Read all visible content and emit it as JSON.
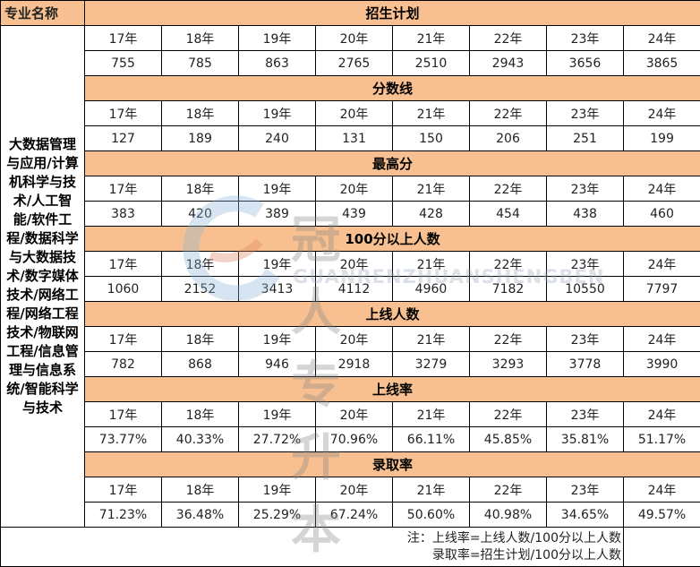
{
  "header": {
    "name_label": "专业名称"
  },
  "major": "大数据管理与应用/计算机科学与技术/人工智能/软件工程/数据科学与大数据技术/数字媒体技术/网络工程/网络工程技术/物联网工程/信息管理与信息系统/智能科学与技术",
  "years": [
    "17年",
    "18年",
    "19年",
    "20年",
    "21年",
    "22年",
    "23年",
    "24年"
  ],
  "sections": [
    {
      "title": "招生计划",
      "values": [
        "755",
        "785",
        "863",
        "2765",
        "2510",
        "2943",
        "3656",
        "3865"
      ]
    },
    {
      "title": "分数线",
      "values": [
        "127",
        "189",
        "240",
        "131",
        "150",
        "206",
        "251",
        "199"
      ]
    },
    {
      "title": "最高分",
      "values": [
        "383",
        "420",
        "389",
        "439",
        "428",
        "454",
        "438",
        "460"
      ]
    },
    {
      "title": "100分以上人数",
      "values": [
        "1060",
        "2152",
        "3413",
        "4112",
        "4960",
        "7182",
        "10550",
        "7797"
      ]
    },
    {
      "title": "上线人数",
      "values": [
        "782",
        "868",
        "946",
        "2918",
        "3279",
        "3293",
        "3778",
        "3990"
      ]
    },
    {
      "title": "上线率",
      "values": [
        "73.77%",
        "40.33%",
        "27.72%",
        "70.96%",
        "66.11%",
        "45.85%",
        "35.81%",
        "51.17%"
      ]
    },
    {
      "title": "录取率",
      "values": [
        "71.23%",
        "36.48%",
        "25.29%",
        "67.24%",
        "50.60%",
        "40.98%",
        "34.65%",
        "49.57%"
      ]
    }
  ],
  "note": {
    "line1": "注：上线率=上线人数/100分以上人数",
    "line2": "录取率=招生计划/100分以上人数"
  },
  "watermark": {
    "main": "冠人专升本",
    "sub": "GUANRENZHUANSHENGBEN"
  },
  "colors": {
    "section_header": "#f8c090"
  }
}
